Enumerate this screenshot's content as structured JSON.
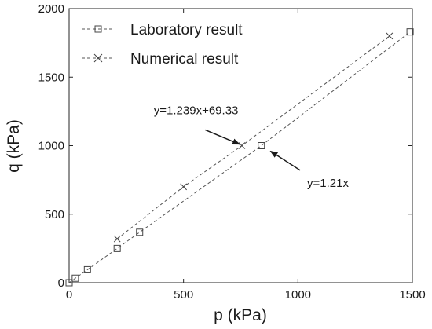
{
  "chart_data": {
    "type": "scatter",
    "xlabel": "p (kPa)",
    "ylabel": "q (kPa)",
    "xlim": [
      0,
      1500
    ],
    "ylim": [
      0,
      2000
    ],
    "x_ticks": [
      0,
      500,
      1000,
      1500
    ],
    "y_ticks": [
      0,
      500,
      1000,
      1500,
      2000
    ],
    "grid": false,
    "legend_position": "top-left",
    "series": [
      {
        "name": "Laboratory result",
        "marker": "square",
        "line": "dashed",
        "color": "#555555",
        "x": [
          0,
          27,
          80,
          210,
          308,
          840,
          1490
        ],
        "y": [
          0,
          33,
          95,
          250,
          368,
          1000,
          1830
        ]
      },
      {
        "name": "Numerical result",
        "marker": "x",
        "line": "dashed",
        "color": "#555555",
        "x": [
          210,
          500,
          755,
          1400
        ],
        "y": [
          320,
          700,
          1000,
          1800
        ]
      }
    ],
    "annotations": [
      {
        "text": "y=1.239x+69.33",
        "text_at": [
          370,
          1230
        ],
        "arrow_from": [
          595,
          1115
        ],
        "arrow_to": [
          745,
          1010
        ]
      },
      {
        "text": "y=1.21x",
        "text_at": [
          1040,
          700
        ],
        "arrow_from": [
          1010,
          820
        ],
        "arrow_to": [
          880,
          960
        ]
      }
    ]
  }
}
